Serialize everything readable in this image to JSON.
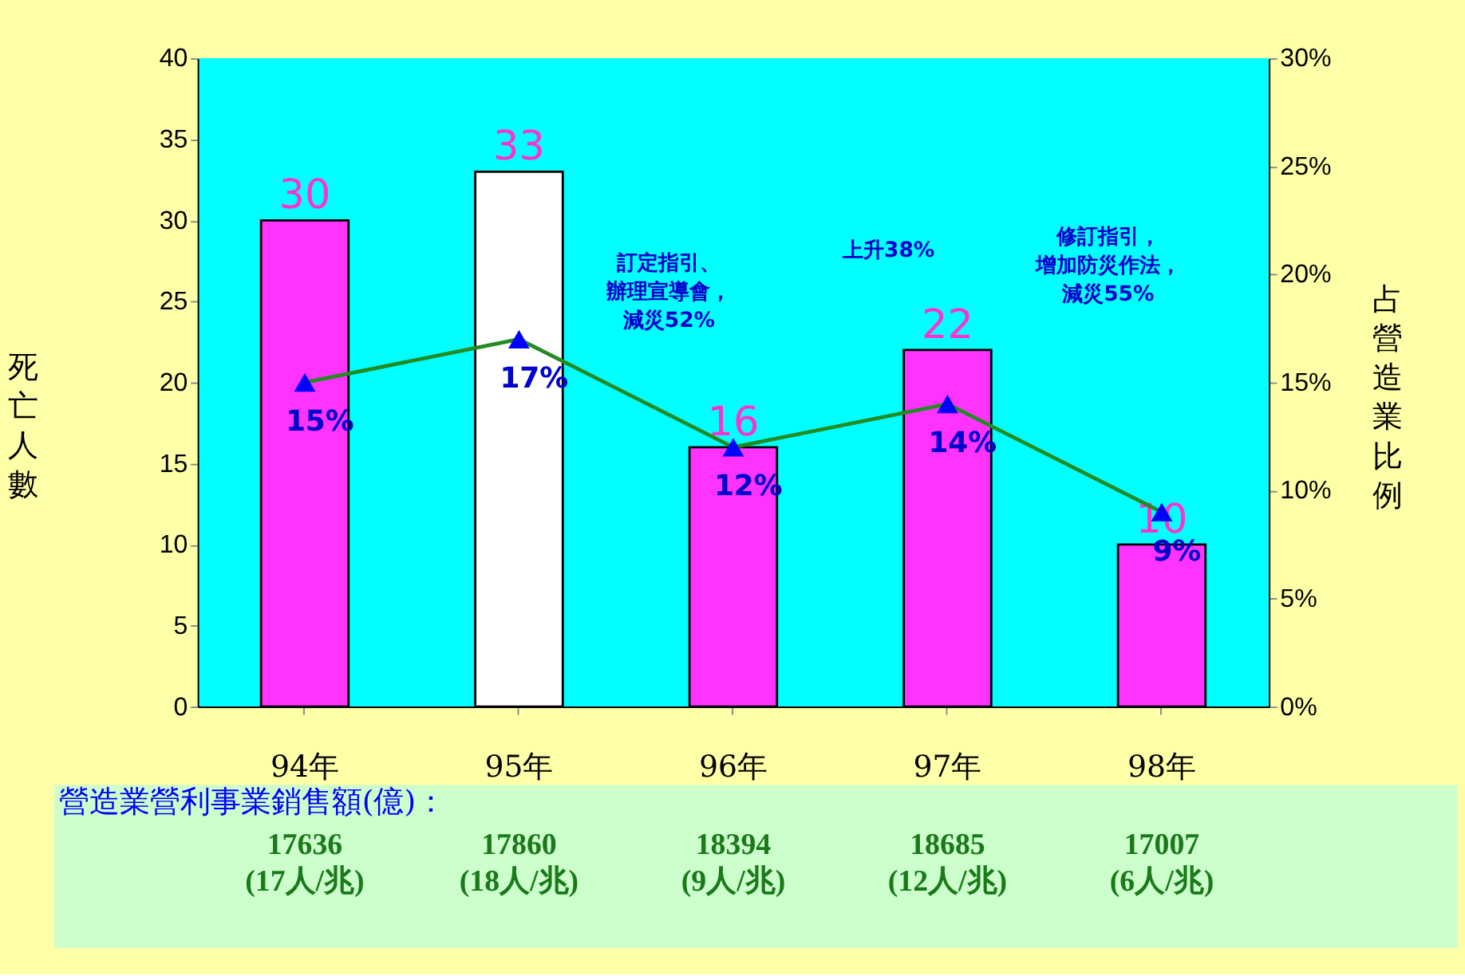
{
  "chart_data": {
    "type": "bar",
    "categories": [
      "94年",
      "95年",
      "96年",
      "97年",
      "98年"
    ],
    "ylabel": "死亡人數",
    "y2label": "占營造業比例",
    "series": [
      {
        "values": [
          30,
          33,
          16,
          22,
          10
        ],
        "colors": [
          "#ff33ff",
          "#ffffff",
          "#ff33ff",
          "#ff33ff",
          "#ff33ff"
        ],
        "data_labels": true
      },
      {
        "type": "line",
        "axis": "y2",
        "color": "#228b22",
        "marker": "triangle",
        "values": [
          15,
          17,
          12,
          14,
          9
        ],
        "value_labels": [
          "15%",
          "17%",
          "12%",
          "14%",
          "9%"
        ]
      }
    ],
    "ylim": [
      0,
      40
    ],
    "yticks": [
      0,
      5,
      10,
      15,
      20,
      25,
      30,
      35,
      40
    ],
    "y2lim": [
      0,
      30
    ],
    "y2ticks": [
      {
        "value": 0,
        "label": "0%"
      },
      {
        "value": 5,
        "label": "5%"
      },
      {
        "value": 10,
        "label": "10%"
      },
      {
        "value": 15,
        "label": "15%"
      },
      {
        "value": 20,
        "label": "20%"
      },
      {
        "value": 25,
        "label": "25%"
      },
      {
        "value": 30,
        "label": "30%"
      }
    ],
    "grid": false,
    "legend": false,
    "annotations": [
      "訂定指引、辦理宣導會，減災52%",
      "上升38%",
      "修訂指引，增加防災作法，減災55%",
      "營造業營利事業銷售額(億)：",
      "17636 (17人/兆)",
      "17860 (18人/兆)",
      "18394 (9人/兆)",
      "18685 (12人/兆)",
      "17007 (6人/兆)"
    ]
  }
}
